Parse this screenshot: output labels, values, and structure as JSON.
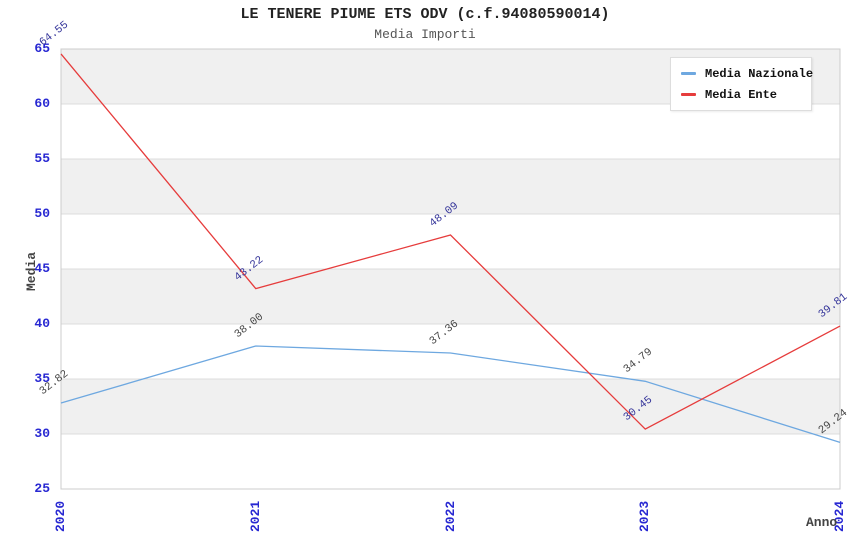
{
  "chart_data": {
    "type": "line",
    "title": "LE TENERE PIUME ETS ODV (c.f.94080590014)",
    "subtitle": "Media Importi",
    "xlabel": "Anno",
    "ylabel": "Media",
    "categories": [
      "2020",
      "2021",
      "2022",
      "2023",
      "2024"
    ],
    "ylim": [
      25,
      65
    ],
    "ytick_step": 5,
    "yticks": [
      25,
      30,
      35,
      40,
      45,
      50,
      55,
      60,
      65
    ],
    "grid": true,
    "banded_background": true,
    "legend_position": "top-right",
    "value_label_decimals": 2,
    "series": [
      {
        "name": "Media Nazionale",
        "color": "#6ea8e0",
        "label_color": "#444444",
        "values": [
          32.82,
          38.0,
          37.36,
          34.79,
          29.24
        ]
      },
      {
        "name": "Media Ente",
        "color": "#e63c3c",
        "label_color": "#333399",
        "values": [
          64.55,
          43.22,
          48.09,
          30.45,
          39.81
        ]
      }
    ]
  },
  "colors": {
    "axis_tick": "#2828d2",
    "grid_line": "#dcdcdc",
    "plot_border": "#cccccc",
    "band_gray": "#f0f0f0",
    "band_white": "#ffffff",
    "title": "#222222",
    "subtitle": "#555555",
    "axis_title": "#444444",
    "legend_text": "#111111"
  }
}
